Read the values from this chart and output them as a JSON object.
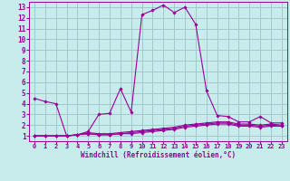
{
  "xlabel": "Windchill (Refroidissement éolien,°C)",
  "ylabel": "",
  "bg_color": "#c8ecec",
  "grid_color": "#a0c8c8",
  "line_color": "#990099",
  "xlim": [
    -0.5,
    23.5
  ],
  "ylim": [
    0.5,
    13.5
  ],
  "xticks": [
    0,
    1,
    2,
    3,
    4,
    5,
    6,
    7,
    8,
    9,
    10,
    11,
    12,
    13,
    14,
    15,
    16,
    17,
    18,
    19,
    20,
    21,
    22,
    23
  ],
  "yticks": [
    1,
    2,
    3,
    4,
    5,
    6,
    7,
    8,
    9,
    10,
    11,
    12,
    13
  ],
  "curves": [
    {
      "x": [
        0,
        1,
        2,
        3,
        4,
        5,
        6,
        7,
        8,
        9,
        10,
        11,
        12,
        13,
        14,
        15,
        16,
        17,
        18,
        19,
        20,
        21,
        22,
        23
      ],
      "y": [
        4.5,
        4.2,
        4.0,
        1.0,
        1.1,
        1.4,
        3.0,
        3.1,
        5.4,
        3.2,
        12.3,
        12.7,
        13.2,
        12.5,
        13.0,
        11.4,
        5.2,
        2.9,
        2.8,
        2.3,
        2.3,
        2.8,
        2.2,
        2.2
      ]
    },
    {
      "x": [
        0,
        1,
        2,
        3,
        4,
        5,
        6,
        7,
        8,
        9,
        10,
        11,
        12,
        13,
        14,
        15,
        16,
        17,
        18,
        19,
        20,
        21,
        22,
        23
      ],
      "y": [
        1.0,
        1.0,
        1.0,
        1.0,
        1.1,
        1.3,
        1.2,
        1.2,
        1.3,
        1.4,
        1.5,
        1.6,
        1.7,
        1.8,
        2.0,
        2.1,
        2.2,
        2.3,
        2.3,
        2.1,
        2.1,
        2.0,
        2.1,
        2.0
      ]
    },
    {
      "x": [
        0,
        1,
        2,
        3,
        4,
        5,
        6,
        7,
        8,
        9,
        10,
        11,
        12,
        13,
        14,
        15,
        16,
        17,
        18,
        19,
        20,
        21,
        22,
        23
      ],
      "y": [
        1.0,
        1.0,
        1.0,
        1.0,
        1.1,
        1.2,
        1.1,
        1.1,
        1.2,
        1.3,
        1.4,
        1.5,
        1.6,
        1.7,
        1.9,
        2.0,
        2.1,
        2.2,
        2.2,
        2.0,
        2.0,
        1.9,
        2.0,
        1.9
      ]
    },
    {
      "x": [
        0,
        1,
        2,
        3,
        4,
        5,
        6,
        7,
        8,
        9,
        10,
        11,
        12,
        13,
        14,
        15,
        16,
        17,
        18,
        19,
        20,
        21,
        22,
        23
      ],
      "y": [
        1.0,
        1.0,
        1.0,
        1.0,
        1.1,
        1.2,
        1.1,
        1.1,
        1.2,
        1.2,
        1.3,
        1.4,
        1.5,
        1.6,
        1.8,
        1.9,
        2.0,
        2.1,
        2.1,
        1.9,
        1.9,
        1.8,
        1.9,
        1.9
      ]
    }
  ]
}
